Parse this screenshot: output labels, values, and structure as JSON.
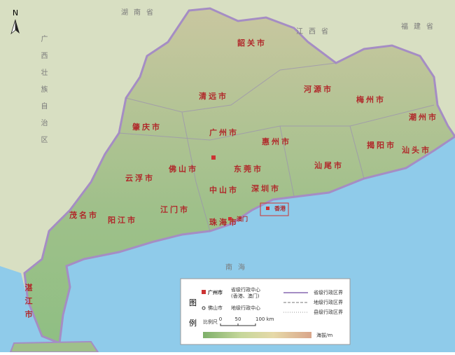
{
  "map": {
    "north": "N",
    "provinces": [
      "湖南省",
      "江西省",
      "福建省",
      "广西壮族自治区",
      "南海"
    ],
    "capital": "广州市",
    "cities": [
      "韶关市",
      "清远市",
      "河源市",
      "梅州市",
      "潮州市",
      "肇庆市",
      "惠州市",
      "揭阳市",
      "汕头市",
      "汕尾市",
      "佛山市",
      "东莞市",
      "云浮市",
      "中山市",
      "深圳市",
      "江门市",
      "珠海市",
      "茂名市",
      "阳江市",
      "湛江市"
    ],
    "sar": [
      "香港",
      "澳门"
    ],
    "legend": {
      "title": [
        "图",
        "例"
      ],
      "capital_label": "广州市",
      "capital_desc": "省级行政中心",
      "capital_note": "(香港、澳门)",
      "city_label": "佛山市",
      "city_desc": "地级行政中心",
      "boundaries": [
        "省级行政区界",
        "地级行政区界",
        "县级行政区界"
      ],
      "scale_label": "比例尺",
      "scale_ticks": [
        "0",
        "50",
        "100 km"
      ],
      "elevation_label": "海拔/m"
    }
  }
}
